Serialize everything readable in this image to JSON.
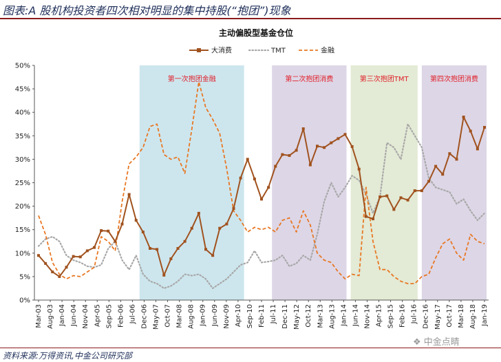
{
  "page": {
    "title": "图表:A 股机构投资者四次相对明显的集中持股(“抱团”)现象",
    "source": "资料来源:万得资讯,中金公司研究部",
    "watermark": "中金点睛"
  },
  "chart_data": {
    "type": "line",
    "title": "主动偏股型基金仓位",
    "ylim": [
      0,
      50
    ],
    "y_ticks": [
      "0%",
      "5%",
      "10%",
      "15%",
      "20%",
      "25%",
      "30%",
      "35%",
      "40%",
      "45%",
      "50%"
    ],
    "x_ticks": [
      "Mar-03",
      "Aug-03",
      "Jan-04",
      "Jun-04",
      "Nov-04",
      "Apr-05",
      "Sep-05",
      "Feb-06",
      "Jul-06",
      "Dec-06",
      "May-07",
      "Oct-07",
      "Mar-08",
      "Aug-08",
      "Jan-09",
      "Jun-09",
      "Nov-09",
      "Apr-10",
      "Sep-10",
      "Feb-11",
      "Jul-11",
      "Dec-11",
      "May-12",
      "Oct-12",
      "Mar-13",
      "Aug-13",
      "Jan-14",
      "Jun-14",
      "Nov-14",
      "Apr-15",
      "Sep-15",
      "Feb-16",
      "Jul-16",
      "Dec-16",
      "May-17",
      "Oct-17",
      "Mar-18",
      "Aug-18",
      "Jan-19"
    ],
    "grid": false,
    "legend_position": "top",
    "series": [
      {
        "name": "大消费",
        "style": "solid-marker",
        "color": "#a0521e",
        "values": [
          9.5,
          7.8,
          6.0,
          5.0,
          7.0,
          9.3,
          9.2,
          10.5,
          11.2,
          14.8,
          14.7,
          12.5,
          16.2,
          22.5,
          17.0,
          14.5,
          11.0,
          10.8,
          5.3,
          8.8,
          11.0,
          12.5,
          15.3,
          18.5,
          10.8,
          9.5,
          15.3,
          16.2,
          19.5,
          26.0,
          30.0,
          25.8,
          21.5,
          24.0,
          28.5,
          31.0,
          30.8,
          31.9,
          36.5,
          28.8,
          32.8,
          32.5,
          33.5,
          34.4,
          35.3,
          32.7,
          27.9,
          17.8,
          17.3,
          22.0,
          22.2,
          19.3,
          21.8,
          21.3,
          23.3,
          23.3,
          25.3,
          28.5,
          26.8,
          31.2,
          30.0,
          39.0,
          36.0,
          32.2,
          36.8
        ]
      },
      {
        "name": "TMT",
        "style": "dotted",
        "color": "#a8a8a8",
        "values": [
          11.5,
          13.0,
          13.5,
          12.5,
          9.5,
          8.5,
          8.0,
          7.2,
          7.0,
          7.5,
          11.0,
          12.5,
          8.5,
          6.5,
          9.5,
          5.5,
          4.0,
          3.5,
          2.5,
          3.0,
          4.0,
          5.5,
          5.2,
          5.5,
          4.5,
          2.5,
          3.5,
          4.5,
          6.0,
          7.5,
          8.0,
          10.5,
          8.0,
          8.2,
          8.5,
          9.5,
          7.2,
          7.8,
          9.5,
          8.5,
          14.0,
          21.0,
          25.0,
          22.0,
          24.0,
          26.5,
          25.5,
          22.5,
          18.5,
          22.0,
          33.5,
          32.5,
          30.0,
          37.5,
          35.0,
          32.5,
          26.0,
          24.0,
          23.5,
          23.0,
          20.5,
          21.5,
          19.0,
          17.0,
          18.5
        ]
      },
      {
        "name": "金融",
        "style": "dashed",
        "color": "#e87722",
        "values": [
          18.0,
          14.0,
          8.0,
          5.5,
          4.5,
          5.2,
          5.0,
          6.0,
          7.0,
          13.5,
          12.5,
          10.5,
          21.0,
          29.0,
          30.5,
          32.5,
          37.0,
          37.5,
          31.0,
          30.0,
          30.5,
          27.0,
          36.5,
          46.5,
          41.0,
          38.5,
          35.5,
          28.0,
          19.0,
          17.0,
          14.5,
          15.5,
          15.0,
          15.5,
          14.5,
          17.0,
          17.5,
          14.5,
          19.0,
          16.0,
          10.0,
          8.5,
          8.0,
          6.0,
          4.5,
          5.5,
          5.2,
          24.0,
          12.5,
          6.5,
          6.5,
          5.0,
          4.0,
          3.5,
          3.5,
          5.0,
          5.5,
          9.0,
          12.0,
          13.0,
          10.0,
          8.5,
          14.0,
          12.5,
          12.0
        ]
      }
    ],
    "periods": [
      {
        "label": "第一次抱团金融",
        "from_index": 14.5,
        "to_index": 29.5,
        "color": "#cde6ee"
      },
      {
        "label": "第二次抱团消费",
        "from_index": 33.5,
        "to_index": 44.2,
        "color": "#ddd6e6"
      },
      {
        "label": "第三次抱团TMT",
        "from_index": 44.8,
        "to_index": 54.4,
        "color": "#e3ead5"
      },
      {
        "label": "第四次抱团消费",
        "from_index": 55.0,
        "to_index": 64.3,
        "color": "#ddd6e6"
      }
    ]
  }
}
